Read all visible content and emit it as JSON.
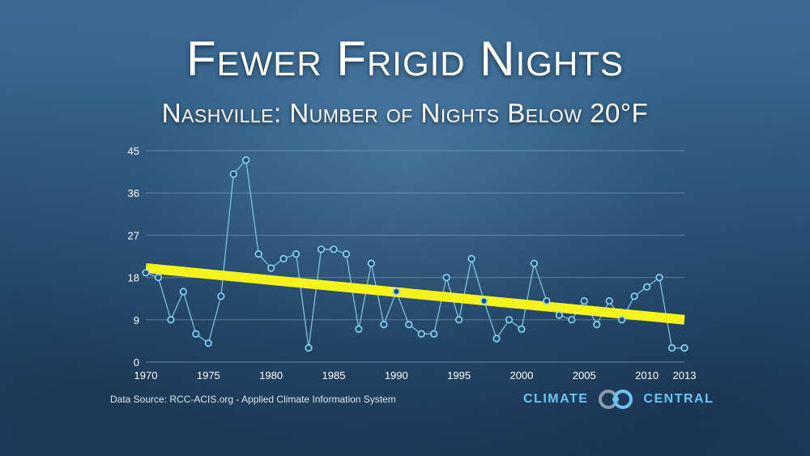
{
  "title": "Fewer Frigid Nights",
  "subtitle": "Nashville: Number of Nights Below 20°F",
  "source": "Data Source: RCC-ACIS.org - Applied Climate Information System",
  "logo": {
    "left": "CLIMATE",
    "right": "CENTRAL"
  },
  "colors": {
    "series": "#8fd4f0",
    "point_fill": "#1f4c72",
    "trend": "#f4f41a",
    "grid": "#9ab7cf",
    "axis_text": "#ffffff",
    "logo": "#6fc3f0"
  },
  "chart_data": {
    "type": "line",
    "title": "Fewer Frigid Nights",
    "subtitle": "Nashville: Number of Nights Below 20°F",
    "xlabel": "",
    "ylabel": "",
    "xlim": [
      1970,
      2013
    ],
    "ylim": [
      0,
      45
    ],
    "grid": true,
    "x_ticks": [
      1970,
      1975,
      1980,
      1985,
      1990,
      1995,
      2000,
      2005,
      2010,
      2013
    ],
    "y_ticks": [
      0,
      9,
      18,
      27,
      36,
      45
    ],
    "series": [
      {
        "x": [
          1970,
          1971,
          1972,
          1973,
          1974,
          1975,
          1976,
          1977,
          1978,
          1979,
          1980,
          1981,
          1982,
          1983,
          1984,
          1985,
          1986,
          1987,
          1988,
          1989,
          1990,
          1991,
          1992,
          1993,
          1994,
          1995,
          1996,
          1997,
          1998,
          1999,
          2000,
          2001,
          2002,
          2003,
          2004,
          2005,
          2006,
          2007,
          2008,
          2009,
          2010,
          2011,
          2012,
          2013
        ],
        "values": [
          19,
          18,
          9,
          15,
          6,
          4,
          14,
          40,
          43,
          23,
          20,
          22,
          23,
          3,
          24,
          24,
          23,
          7,
          21,
          8,
          15,
          8,
          6,
          6,
          18,
          9,
          22,
          13,
          5,
          9,
          7,
          21,
          13,
          10,
          9,
          13,
          8,
          13,
          9,
          14,
          16,
          18,
          3,
          3
        ]
      }
    ],
    "trend_line": {
      "x": [
        1970,
        2013
      ],
      "values": [
        20,
        9
      ]
    }
  }
}
